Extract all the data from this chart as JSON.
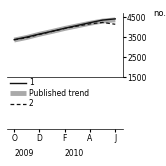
{
  "title": "",
  "ylabel": "no.",
  "ylim": [
    1500,
    4700
  ],
  "yticks": [
    1500,
    2500,
    3500,
    4500
  ],
  "xlim": [
    -0.3,
    4.3
  ],
  "x_tick_labels": [
    "O",
    "D",
    "F",
    "A",
    "J"
  ],
  "line1_x": [
    0,
    0.5,
    1,
    1.5,
    2,
    2.5,
    3,
    3.5,
    4
  ],
  "line1_y": [
    3380,
    3510,
    3660,
    3800,
    3950,
    4090,
    4230,
    4360,
    4420
  ],
  "published_trend_x": [
    0,
    0.5,
    1,
    1.5,
    2,
    2.5,
    3,
    3.5,
    4
  ],
  "published_trend_y": [
    3360,
    3490,
    3650,
    3790,
    3940,
    4070,
    4200,
    4310,
    4370
  ],
  "line2_x": [
    0,
    0.5,
    1,
    1.5,
    2,
    2.5,
    3,
    3.5,
    4
  ],
  "line2_y": [
    3370,
    3480,
    3640,
    3790,
    3940,
    4060,
    4170,
    4240,
    4150
  ],
  "background_color": "#ffffff",
  "line1_color": "#111111",
  "published_trend_color": "#aaaaaa",
  "line2_color": "#111111",
  "legend_labels": [
    "1",
    "Published trend",
    "2"
  ],
  "year_labels": [
    [
      "2009",
      0.0
    ],
    [
      "2010",
      2.0
    ]
  ],
  "legend_fontsize": 5.5,
  "tick_fontsize": 5.5,
  "ylabel_fontsize": 6.0
}
